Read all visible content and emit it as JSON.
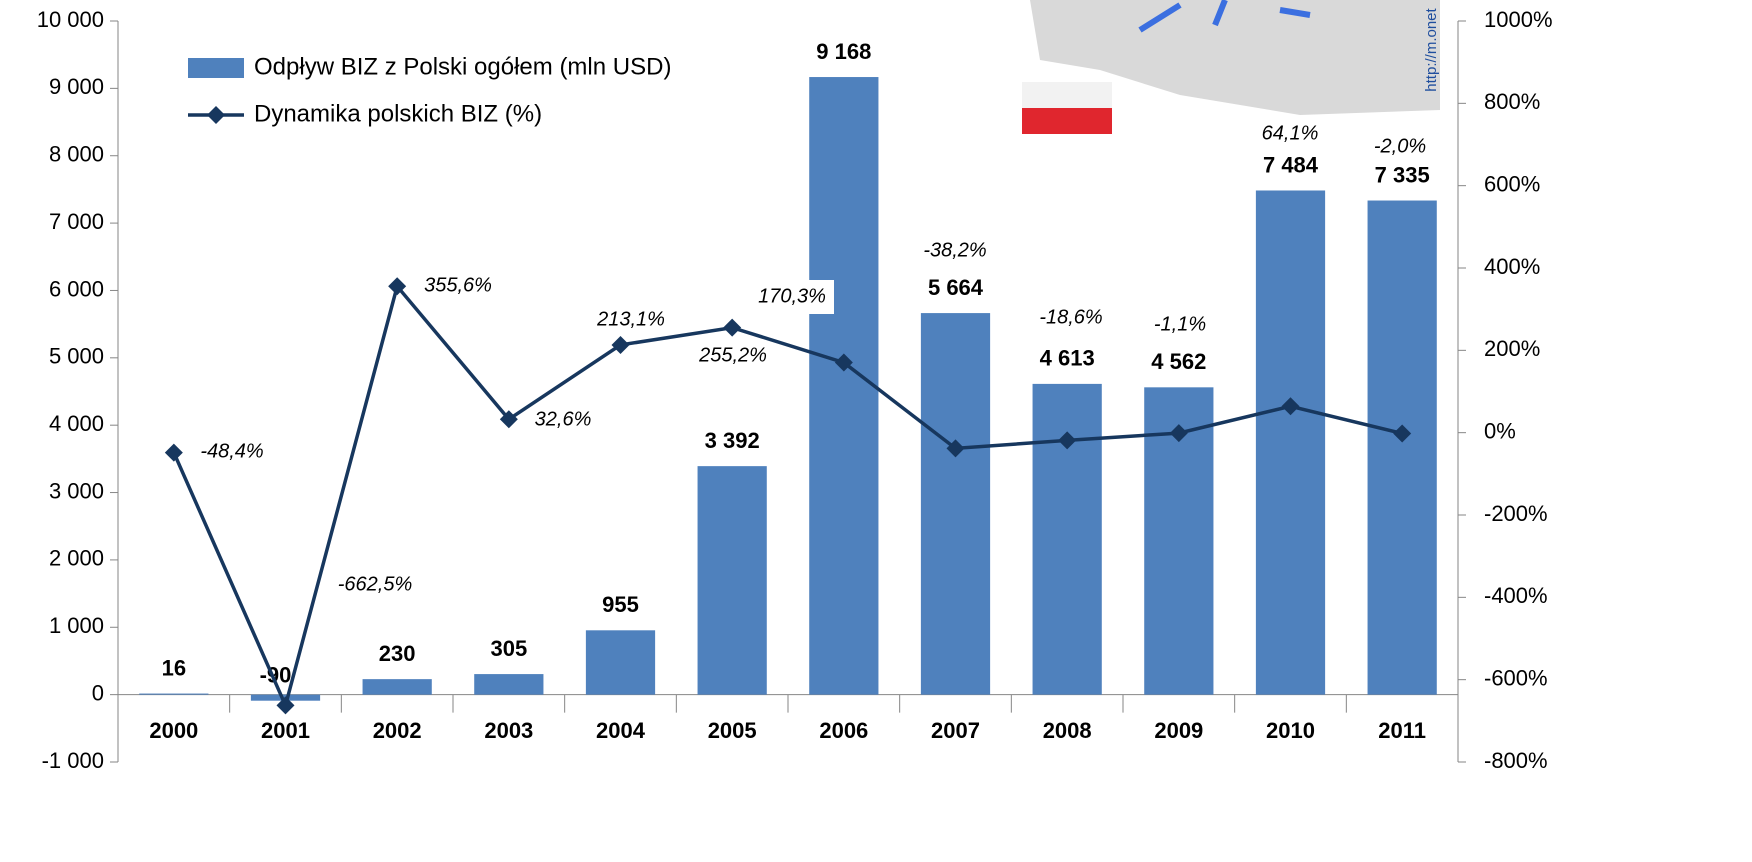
{
  "chart_data": {
    "type": "bar_line",
    "categories": [
      "2000",
      "2001",
      "2002",
      "2003",
      "2004",
      "2005",
      "2006",
      "2007",
      "2008",
      "2009",
      "2010",
      "2011"
    ],
    "series": [
      {
        "name": "Odpływ BIZ z Polski ogółem (mln USD)",
        "type": "bar",
        "color": "#4f81bd",
        "values": [
          16,
          -90,
          230,
          305,
          955,
          3392,
          9168,
          5664,
          4613,
          4562,
          7484,
          7335
        ],
        "value_labels": [
          "16",
          "-90",
          "230",
          "305",
          "955",
          "3 392",
          "9 168",
          "5 664",
          "4 613",
          "4 562",
          "7 484",
          "7 335"
        ]
      },
      {
        "name": "Dynamika polskich BIZ (%)",
        "type": "line",
        "color": "#17375e",
        "axis": "y2",
        "values": [
          -48.4,
          -662.5,
          355.6,
          32.6,
          213.1,
          255.2,
          170.3,
          -38.2,
          -18.6,
          -1.1,
          64.1,
          -2.0
        ],
        "value_labels": [
          "-48,4%",
          "-662,5%",
          "355,6%",
          "32,6%",
          "213,1%",
          "255,2%",
          "170,3%",
          "-38,2%",
          "-18,6%",
          "-1,1%",
          "64,1%",
          "-2,0%"
        ]
      }
    ],
    "ylim": [
      -1000,
      10000
    ],
    "yticks": [
      {
        "value": -1000,
        "label": "-1 000"
      },
      0,
      {
        "value": 1000,
        "label": "1 000"
      },
      {
        "value": 2000,
        "label": "2 000"
      },
      {
        "value": 3000,
        "label": "3 000"
      },
      {
        "value": 4000,
        "label": "4 000"
      },
      {
        "value": 5000,
        "label": "5 000"
      },
      {
        "value": 6000,
        "label": "6 000"
      },
      {
        "value": 7000,
        "label": "7 000"
      },
      {
        "value": 8000,
        "label": "8 000"
      },
      {
        "value": 9000,
        "label": "9 000"
      },
      {
        "value": 10000,
        "label": "10 000"
      }
    ],
    "y2lim": [
      -800,
      1000
    ],
    "y2ticks": [
      {
        "value": -800,
        "label": "-800%"
      },
      {
        "value": -600,
        "label": "-600%"
      },
      {
        "value": -400,
        "label": "-400%"
      },
      {
        "value": -200,
        "label": "-200%"
      },
      {
        "value": 0,
        "label": "0%"
      },
      {
        "value": 200,
        "label": "200%"
      },
      {
        "value": 400,
        "label": "400%"
      },
      {
        "value": 600,
        "label": "600%"
      },
      {
        "value": 800,
        "label": "800%"
      },
      {
        "value": 1000,
        "label": "1000%"
      }
    ],
    "legend": "top-left",
    "watermark": "http://m.onet"
  }
}
